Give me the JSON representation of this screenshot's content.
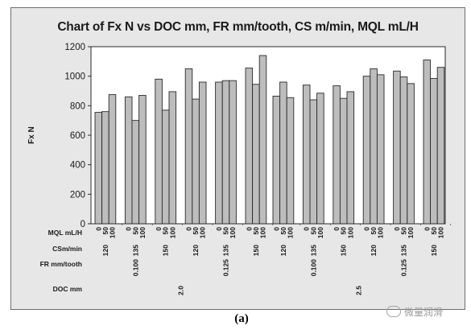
{
  "chart_data": {
    "type": "bar",
    "title": "Chart of Fx N vs DOC mm, FR mm/tooth, CS m/min, MQL mL/H",
    "ylabel": "Fx N",
    "ylim": [
      0,
      1200
    ],
    "yticks": [
      0,
      200,
      400,
      600,
      800,
      1000,
      1200
    ],
    "grid": false,
    "legend": "none",
    "x_factor_labels": [
      "MQL mL/H",
      "CSm/min",
      "FR mm/tooth",
      "DOC mm"
    ],
    "mql_levels": [
      "0",
      "50",
      "100"
    ],
    "cs_levels": [
      "120",
      "135",
      "150"
    ],
    "fr_levels": [
      "0.100",
      "0.125"
    ],
    "doc_levels": [
      "2.0",
      "2.5"
    ],
    "series": [
      {
        "doc": "2.0",
        "fr": "0.100",
        "cs": "120",
        "values": [
          755,
          760,
          875
        ]
      },
      {
        "doc": "2.0",
        "fr": "0.100",
        "cs": "135",
        "values": [
          860,
          700,
          870
        ]
      },
      {
        "doc": "2.0",
        "fr": "0.100",
        "cs": "150",
        "values": [
          980,
          770,
          895
        ]
      },
      {
        "doc": "2.0",
        "fr": "0.125",
        "cs": "120",
        "values": [
          1050,
          845,
          960
        ]
      },
      {
        "doc": "2.0",
        "fr": "0.125",
        "cs": "135",
        "values": [
          960,
          970,
          970
        ]
      },
      {
        "doc": "2.0",
        "fr": "0.125",
        "cs": "150",
        "values": [
          1055,
          945,
          1140
        ]
      },
      {
        "doc": "2.5",
        "fr": "0.100",
        "cs": "120",
        "values": [
          865,
          960,
          855
        ]
      },
      {
        "doc": "2.5",
        "fr": "0.100",
        "cs": "135",
        "values": [
          940,
          840,
          885
        ]
      },
      {
        "doc": "2.5",
        "fr": "0.100",
        "cs": "150",
        "values": [
          935,
          850,
          895
        ]
      },
      {
        "doc": "2.5",
        "fr": "0.125",
        "cs": "120",
        "values": [
          1000,
          1050,
          1010
        ]
      },
      {
        "doc": "2.5",
        "fr": "0.125",
        "cs": "135",
        "values": [
          1035,
          995,
          950
        ]
      },
      {
        "doc": "2.5",
        "fr": "0.125",
        "cs": "150",
        "values": [
          1110,
          985,
          1060
        ]
      }
    ],
    "colors": {
      "bar_fill": "#bdbdbd",
      "bar_stroke": "#2a2a2a",
      "plot_bg": "#ffffff",
      "frame_bg": "#e7e7e7"
    }
  },
  "caption": "(a)",
  "watermark": "微量润滑"
}
